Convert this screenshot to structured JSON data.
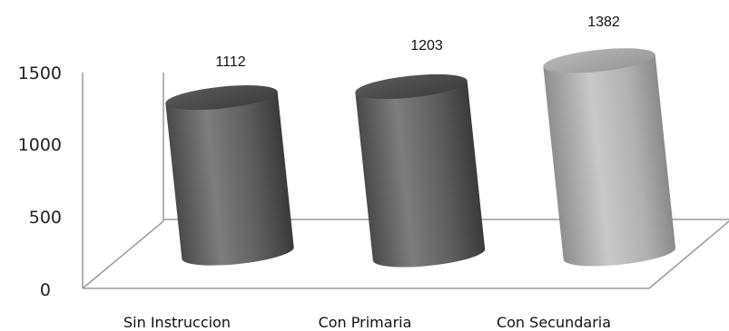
{
  "chart_data": {
    "type": "bar",
    "style": "3d-cylinder",
    "categories": [
      "Sin Instruccion",
      "Con Primaria",
      "Con Secundaria"
    ],
    "values": [
      1112,
      1203,
      1382
    ],
    "data_labels": [
      "1112",
      "1203",
      "1382"
    ],
    "yticks": [
      "0",
      "500",
      "1000",
      "1500"
    ],
    "ylim": [
      0,
      1500
    ],
    "grid": false,
    "legend": false,
    "colors": {
      "dark_bar": "#6e6e6e",
      "light_bar": "#b5b5b5",
      "floor_line": "#9a9a9a"
    }
  }
}
